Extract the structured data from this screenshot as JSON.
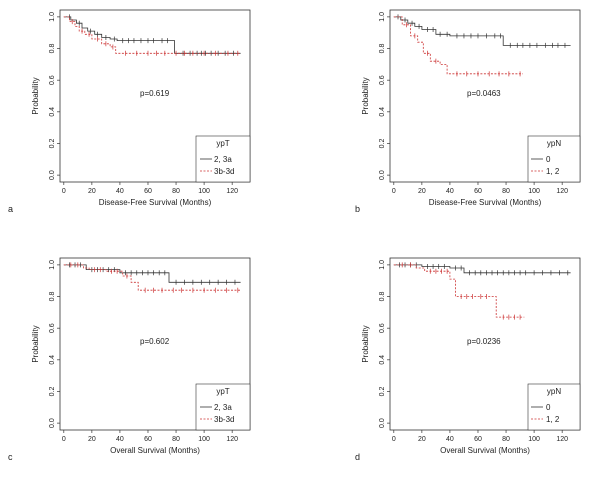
{
  "chart_data": [
    {
      "type": "line",
      "subtype": "kaplan-meier",
      "panel_label": "a",
      "xlabel": "Disease-Free Survival (Months)",
      "ylabel": "Probability",
      "xlim": [
        0,
        130
      ],
      "ylim": [
        0,
        1.0
      ],
      "xticks": [
        "0",
        "20",
        "40",
        "60",
        "80",
        "100",
        "120"
      ],
      "yticks": [
        "0.0",
        "0.2",
        "0.4",
        "0.6",
        "0.8",
        "1.0"
      ],
      "p_value_text": "p=0.619",
      "legend_title": "ypT",
      "series": [
        {
          "name": "2, 3a",
          "color": "#333333",
          "dashed": false,
          "steps": [
            [
              0,
              1.0
            ],
            [
              5,
              0.98
            ],
            [
              9,
              0.96
            ],
            [
              13,
              0.93
            ],
            [
              17,
              0.91
            ],
            [
              22,
              0.89
            ],
            [
              27,
              0.87
            ],
            [
              33,
              0.86
            ],
            [
              38,
              0.85
            ],
            [
              79,
              0.77
            ],
            [
              126,
              0.77
            ]
          ],
          "censors": [
            4,
            11,
            19,
            24,
            30,
            36,
            42,
            46,
            50,
            55,
            60,
            64,
            70,
            74,
            85,
            90,
            95,
            98,
            101,
            105,
            110,
            115,
            121
          ]
        },
        {
          "name": "3b-3d",
          "color": "#cc3333",
          "dashed": true,
          "steps": [
            [
              0,
              1.0
            ],
            [
              4,
              0.97
            ],
            [
              8,
              0.94
            ],
            [
              11,
              0.91
            ],
            [
              15,
              0.89
            ],
            [
              20,
              0.86
            ],
            [
              27,
              0.83
            ],
            [
              33,
              0.81
            ],
            [
              37,
              0.77
            ],
            [
              126,
              0.77
            ]
          ],
          "censors": [
            6,
            13,
            18,
            24,
            30,
            35,
            44,
            52,
            60,
            66,
            72,
            80,
            86,
            92,
            100,
            108,
            117,
            124
          ]
        }
      ]
    },
    {
      "type": "line",
      "subtype": "kaplan-meier",
      "panel_label": "b",
      "xlabel": "Disease-Free Survival (Months)",
      "ylabel": "Probability",
      "xlim": [
        0,
        130
      ],
      "ylim": [
        0,
        1.0
      ],
      "xticks": [
        "0",
        "20",
        "40",
        "60",
        "80",
        "100",
        "120"
      ],
      "yticks": [
        "0.0",
        "0.2",
        "0.4",
        "0.6",
        "0.8",
        "1.0"
      ],
      "p_value_text": "p=0.0463",
      "legend_title": "ypN",
      "series": [
        {
          "name": "0",
          "color": "#333333",
          "dashed": false,
          "steps": [
            [
              0,
              1.0
            ],
            [
              5,
              0.98
            ],
            [
              10,
              0.96
            ],
            [
              15,
              0.94
            ],
            [
              20,
              0.92
            ],
            [
              30,
              0.89
            ],
            [
              40,
              0.88
            ],
            [
              78,
              0.82
            ],
            [
              126,
              0.82
            ]
          ],
          "censors": [
            3,
            8,
            13,
            18,
            24,
            28,
            33,
            38,
            45,
            50,
            55,
            60,
            66,
            72,
            76,
            83,
            88,
            92,
            97,
            102,
            108,
            113,
            117,
            122
          ]
        },
        {
          "name": "1, 2",
          "color": "#cc3333",
          "dashed": true,
          "steps": [
            [
              0,
              1.0
            ],
            [
              6,
              0.95
            ],
            [
              12,
              0.88
            ],
            [
              17,
              0.84
            ],
            [
              21,
              0.77
            ],
            [
              26,
              0.72
            ],
            [
              33,
              0.7
            ],
            [
              38,
              0.64
            ],
            [
              92,
              0.64
            ]
          ],
          "censors": [
            9,
            15,
            24,
            30,
            45,
            52,
            60,
            68,
            75,
            82,
            90
          ]
        }
      ]
    },
    {
      "type": "line",
      "subtype": "kaplan-meier",
      "panel_label": "c",
      "xlabel": "Overall Survival (Months)",
      "ylabel": "Probability",
      "xlim": [
        0,
        130
      ],
      "ylim": [
        0,
        1.0
      ],
      "xticks": [
        "0",
        "20",
        "40",
        "60",
        "80",
        "100",
        "120"
      ],
      "yticks": [
        "0.0",
        "0.2",
        "0.4",
        "0.6",
        "0.8",
        "1.0"
      ],
      "p_value_text": "p=0.602",
      "legend_title": "ypT",
      "series": [
        {
          "name": "2, 3a",
          "color": "#333333",
          "dashed": false,
          "steps": [
            [
              0,
              1.0
            ],
            [
              16,
              0.97
            ],
            [
              40,
              0.95
            ],
            [
              75,
              0.89
            ],
            [
              126,
              0.89
            ]
          ],
          "censors": [
            4,
            8,
            12,
            20,
            24,
            28,
            32,
            36,
            44,
            48,
            52,
            56,
            60,
            64,
            68,
            72,
            80,
            86,
            92,
            98,
            104,
            110,
            116,
            122
          ]
        },
        {
          "name": "3b-3d",
          "color": "#cc3333",
          "dashed": true,
          "steps": [
            [
              0,
              1.0
            ],
            [
              14,
              0.98
            ],
            [
              18,
              0.97
            ],
            [
              30,
              0.96
            ],
            [
              42,
              0.93
            ],
            [
              48,
              0.89
            ],
            [
              53,
              0.84
            ],
            [
              126,
              0.84
            ]
          ],
          "censors": [
            5,
            10,
            22,
            26,
            34,
            38,
            45,
            58,
            64,
            70,
            78,
            84,
            92,
            100,
            108,
            116,
            124
          ]
        }
      ]
    },
    {
      "type": "line",
      "subtype": "kaplan-meier",
      "panel_label": "d",
      "xlabel": "Overall Survival (Months)",
      "ylabel": "Probability",
      "xlim": [
        0,
        130
      ],
      "ylim": [
        0,
        1.0
      ],
      "xticks": [
        "0",
        "20",
        "40",
        "60",
        "80",
        "100",
        "120"
      ],
      "yticks": [
        "0.0",
        "0.2",
        "0.4",
        "0.6",
        "0.8",
        "1.0"
      ],
      "p_value_text": "p=0.0236",
      "legend_title": "ypN",
      "series": [
        {
          "name": "0",
          "color": "#333333",
          "dashed": false,
          "steps": [
            [
              0,
              1.0
            ],
            [
              20,
              0.99
            ],
            [
              40,
              0.98
            ],
            [
              50,
              0.95
            ],
            [
              126,
              0.95
            ]
          ],
          "censors": [
            4,
            8,
            12,
            16,
            24,
            28,
            32,
            36,
            44,
            48,
            54,
            58,
            62,
            66,
            70,
            74,
            78,
            82,
            86,
            90,
            94,
            100,
            106,
            112,
            118,
            124
          ]
        },
        {
          "name": "1, 2",
          "color": "#cc3333",
          "dashed": true,
          "steps": [
            [
              0,
              1.0
            ],
            [
              16,
              0.98
            ],
            [
              22,
              0.96
            ],
            [
              40,
              0.91
            ],
            [
              44,
              0.8
            ],
            [
              73,
              0.67
            ],
            [
              93,
              0.67
            ]
          ],
          "censors": [
            6,
            12,
            26,
            30,
            34,
            38,
            48,
            52,
            56,
            62,
            66,
            78,
            82,
            86,
            90
          ]
        }
      ]
    }
  ]
}
